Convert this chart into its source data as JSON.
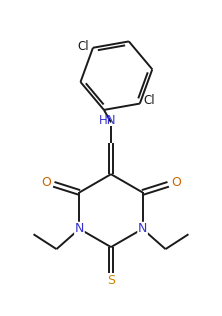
{
  "bg_color": "#ffffff",
  "line_color": "#1a1a1a",
  "o_color": "#cc6600",
  "n_color": "#3333cc",
  "s_color": "#cc8800",
  "line_width": 1.4,
  "figsize": [
    2.22,
    3.16
  ],
  "dpi": 100,
  "xlim": [
    0,
    8
  ],
  "ylim": [
    0,
    11.5
  ]
}
